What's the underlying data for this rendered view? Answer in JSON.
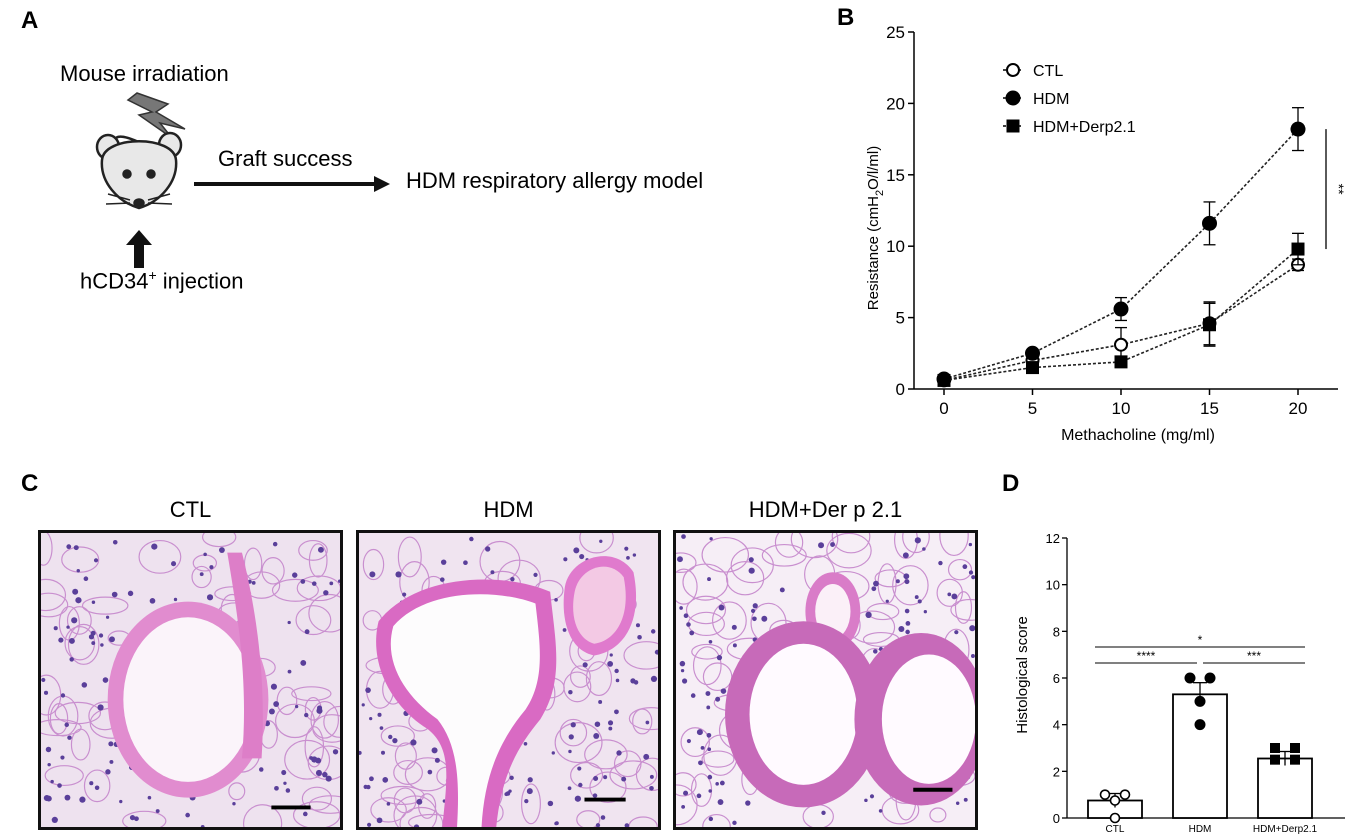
{
  "panels": {
    "a": {
      "letter": "A",
      "mouse_irradiation": "Mouse irradiation",
      "graft_success": "Graft success",
      "model": "HDM respiratory allergy model",
      "injection_prefix": "hCD34",
      "injection_sup": "+",
      "injection_suffix": " injection",
      "icons": [
        "lightning-icon",
        "mouse-icon",
        "arrow-up-icon",
        "arrow-right-icon"
      ]
    },
    "b": {
      "letter": "B"
    },
    "c": {
      "letter": "C",
      "images": [
        {
          "title": "CTL"
        },
        {
          "title": "HDM"
        },
        {
          "title": "HDM+Der p 2.1"
        }
      ]
    },
    "d": {
      "letter": "D"
    }
  },
  "chart_data": [
    {
      "type": "line",
      "x": [
        0,
        5,
        10,
        15,
        20
      ],
      "xlabel": "Methacholine (mg/ml)",
      "ylabel_prefix": "Resistance (cmH",
      "ylabel_sub": "2",
      "ylabel_suffix": "O/l/ml)",
      "xlim": [
        0,
        20
      ],
      "ylim": [
        0,
        25
      ],
      "yticks": [
        0,
        5,
        10,
        15,
        20,
        25
      ],
      "legend_position": "top-left",
      "series": [
        {
          "name": "CTL",
          "marker": "open-circle",
          "values": [
            0.6,
            2.0,
            3.1,
            4.6,
            8.7
          ],
          "err": [
            0.1,
            0.2,
            1.2,
            1.5,
            0.4
          ]
        },
        {
          "name": "HDM",
          "marker": "filled-circle",
          "values": [
            0.7,
            2.5,
            5.6,
            11.6,
            18.2
          ],
          "err": [
            0.1,
            0.2,
            0.8,
            1.5,
            1.5
          ]
        },
        {
          "name": "HDM+Derp2.1",
          "marker": "filled-square",
          "values": [
            0.6,
            1.5,
            1.9,
            4.5,
            9.8
          ],
          "err": [
            0.1,
            0.2,
            0.3,
            1.5,
            1.1
          ]
        }
      ],
      "significance": [
        {
          "label": "**",
          "between": [
            "HDM",
            "HDM+Derp2.1"
          ],
          "at_x": 20
        }
      ]
    },
    {
      "type": "bar",
      "categories": [
        "CTL",
        "HDM",
        "HDM+Derp2.1"
      ],
      "values": [
        0.75,
        5.3,
        2.55
      ],
      "err": [
        0.3,
        0.5,
        0.3
      ],
      "points": [
        [
          1.0,
          1.0,
          0.75,
          0.0
        ],
        [
          6.0,
          6.0,
          5.0,
          4.0
        ],
        [
          3.0,
          3.0,
          2.5,
          2.5
        ]
      ],
      "point_styles": [
        "open-circle",
        "filled-circle",
        "filled-square"
      ],
      "ylabel": "Histological score",
      "ylim": [
        0,
        12
      ],
      "yticks": [
        0,
        2,
        4,
        6,
        8,
        10,
        12
      ],
      "significance": [
        {
          "label": "****",
          "between": [
            "CTL",
            "HDM"
          ]
        },
        {
          "label": "***",
          "between": [
            "HDM",
            "HDM+Derp2.1"
          ]
        },
        {
          "label": "*",
          "between": [
            "CTL",
            "HDM+Derp2.1"
          ]
        }
      ]
    }
  ]
}
